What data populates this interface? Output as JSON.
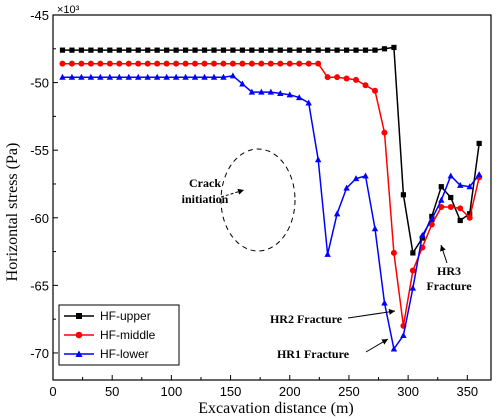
{
  "chart_data": {
    "type": "line",
    "xlabel": "Excavation distance (m)",
    "ylabel": "Horizontal stress (Pa)",
    "y_multiplier": "×10³",
    "xlim": [
      0,
      370
    ],
    "ylim": [
      -72,
      -45
    ],
    "xticks": [
      0,
      50,
      100,
      150,
      200,
      250,
      300,
      350
    ],
    "yticks": [
      -45,
      -50,
      -55,
      -60,
      -65,
      -70
    ],
    "legend_position": "bottom-left",
    "series": [
      {
        "name": "HF-upper",
        "color": "#000000",
        "marker": "square",
        "x": [
          8,
          16,
          24,
          32,
          40,
          48,
          56,
          64,
          72,
          80,
          88,
          96,
          104,
          112,
          120,
          128,
          136,
          144,
          152,
          160,
          168,
          176,
          184,
          192,
          200,
          208,
          216,
          224,
          232,
          240,
          248,
          256,
          264,
          272,
          280,
          288,
          296,
          304,
          312,
          320,
          328,
          336,
          344,
          352,
          360
        ],
        "y": [
          -47.6,
          -47.6,
          -47.6,
          -47.6,
          -47.6,
          -47.6,
          -47.6,
          -47.6,
          -47.6,
          -47.6,
          -47.6,
          -47.6,
          -47.6,
          -47.6,
          -47.6,
          -47.6,
          -47.6,
          -47.6,
          -47.6,
          -47.6,
          -47.6,
          -47.6,
          -47.6,
          -47.6,
          -47.6,
          -47.6,
          -47.6,
          -47.6,
          -47.6,
          -47.6,
          -47.6,
          -47.6,
          -47.6,
          -47.6,
          -47.5,
          -47.4,
          -58.3,
          -62.6,
          -61.5,
          -59.9,
          -57.7,
          -58.5,
          -60.2,
          -59.7,
          -54.5
        ]
      },
      {
        "name": "HF-middle",
        "color": "#ff0000",
        "marker": "circle",
        "x": [
          8,
          16,
          24,
          32,
          40,
          48,
          56,
          64,
          72,
          80,
          88,
          96,
          104,
          112,
          120,
          128,
          136,
          144,
          152,
          160,
          168,
          176,
          184,
          192,
          200,
          208,
          216,
          224,
          232,
          240,
          248,
          256,
          264,
          272,
          280,
          288,
          296,
          304,
          312,
          320,
          328,
          336,
          344,
          352,
          360
        ],
        "y": [
          -48.6,
          -48.6,
          -48.6,
          -48.6,
          -48.6,
          -48.6,
          -48.6,
          -48.6,
          -48.6,
          -48.6,
          -48.6,
          -48.6,
          -48.6,
          -48.6,
          -48.6,
          -48.6,
          -48.6,
          -48.6,
          -48.6,
          -48.6,
          -48.6,
          -48.6,
          -48.6,
          -48.6,
          -48.6,
          -48.6,
          -48.6,
          -48.6,
          -49.6,
          -49.6,
          -49.7,
          -49.8,
          -50.2,
          -50.6,
          -53.7,
          -62.6,
          -68.0,
          -63.9,
          -62.2,
          -60.5,
          -59.2,
          -59.2,
          -59.3,
          -60.0,
          -57.0
        ]
      },
      {
        "name": "HF-lower",
        "color": "#0000ff",
        "marker": "triangle",
        "x": [
          8,
          16,
          24,
          32,
          40,
          48,
          56,
          64,
          72,
          80,
          88,
          96,
          104,
          112,
          120,
          128,
          136,
          144,
          152,
          160,
          168,
          176,
          184,
          192,
          200,
          208,
          216,
          224,
          232,
          240,
          248,
          256,
          264,
          272,
          280,
          288,
          296,
          304,
          312,
          320,
          328,
          336,
          344,
          352,
          360
        ],
        "y": [
          -49.6,
          -49.6,
          -49.6,
          -49.6,
          -49.6,
          -49.6,
          -49.6,
          -49.6,
          -49.6,
          -49.6,
          -49.6,
          -49.6,
          -49.6,
          -49.6,
          -49.6,
          -49.6,
          -49.6,
          -49.6,
          -49.5,
          -50.1,
          -50.7,
          -50.7,
          -50.7,
          -50.8,
          -50.9,
          -51.1,
          -51.5,
          -55.7,
          -62.7,
          -59.7,
          -57.8,
          -57.1,
          -56.9,
          -60.8,
          -66.3,
          -69.7,
          -68.7,
          -65.2,
          -61.3,
          -60.1,
          -58.7,
          -56.9,
          -57.6,
          -57.7,
          -56.8
        ]
      }
    ],
    "annotations": [
      {
        "lines": [
          "Crack",
          "initiation"
        ]
      },
      {
        "lines": [
          "HR3",
          "Fracture"
        ]
      },
      {
        "lines": [
          "HR2 Fracture"
        ]
      },
      {
        "lines": [
          "HR1 Fracture"
        ]
      }
    ]
  }
}
